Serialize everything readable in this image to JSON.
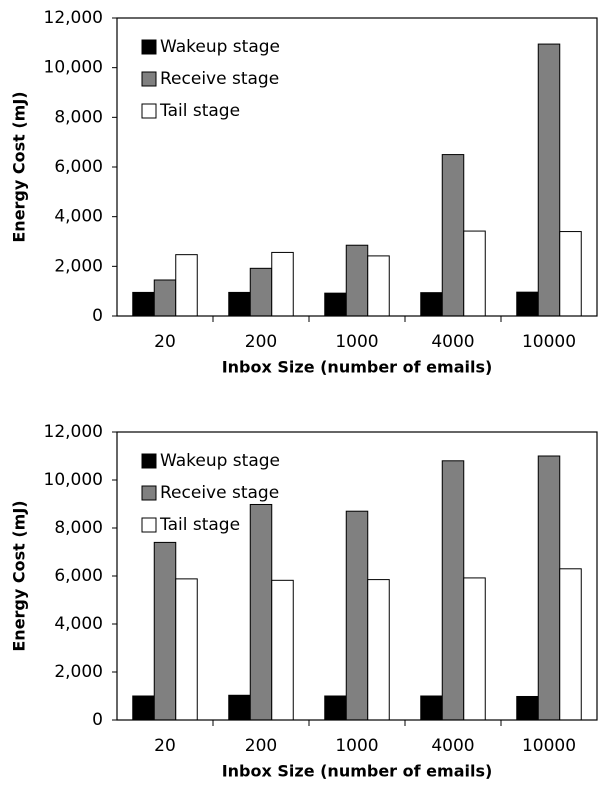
{
  "chart_data": [
    {
      "type": "bar",
      "x_label": "Inbox Size (number of emails)",
      "y_label": "Energy Cost (mJ)",
      "categories": [
        "20",
        "200",
        "1000",
        "4000",
        "10000"
      ],
      "series": [
        {
          "name": "Wakeup stage",
          "color": "#000000",
          "values": [
            950,
            950,
            920,
            940,
            960
          ]
        },
        {
          "name": "Receive stage",
          "color": "#808080",
          "values": [
            1450,
            1920,
            2850,
            6500,
            10950
          ]
        },
        {
          "name": "Tail stage",
          "color": "#ffffff",
          "values": [
            2470,
            2560,
            2420,
            3420,
            3400
          ]
        }
      ],
      "ylim": [
        0,
        12000
      ],
      "yticks": [
        0,
        {
          "value": 2000,
          "label": "2,000"
        },
        {
          "value": 4000,
          "label": "4,000"
        },
        {
          "value": 6000,
          "label": "6,000"
        },
        {
          "value": 8000,
          "label": "8,000"
        },
        {
          "value": 10000,
          "label": "10,000"
        },
        {
          "value": 12000,
          "label": "12,000"
        }
      ],
      "legend": "upper left"
    },
    {
      "type": "bar",
      "x_label": "Inbox Size (number of emails)",
      "y_label": "Energy Cost (mJ)",
      "categories": [
        "20",
        "200",
        "1000",
        "4000",
        "10000"
      ],
      "series": [
        {
          "name": "Wakeup stage",
          "color": "#000000",
          "values": [
            1000,
            1030,
            1000,
            1000,
            980
          ]
        },
        {
          "name": "Receive stage",
          "color": "#808080",
          "values": [
            7400,
            8980,
            8700,
            10800,
            11000
          ]
        },
        {
          "name": "Tail stage",
          "color": "#ffffff",
          "values": [
            5880,
            5820,
            5850,
            5920,
            6300
          ]
        }
      ],
      "ylim": [
        0,
        12000
      ],
      "yticks": [
        0,
        {
          "value": 2000,
          "label": "2,000"
        },
        {
          "value": 4000,
          "label": "4,000"
        },
        {
          "value": 6000,
          "label": "6,000"
        },
        {
          "value": 8000,
          "label": "8,000"
        },
        {
          "value": 10000,
          "label": "10,000"
        },
        {
          "value": 12000,
          "label": "12,000"
        }
      ],
      "legend": "upper left"
    }
  ]
}
